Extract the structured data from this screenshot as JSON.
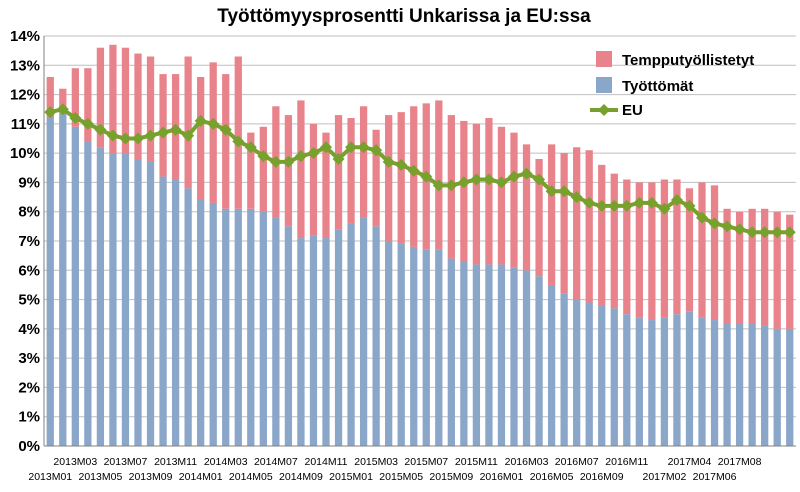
{
  "chart_data": {
    "type": "bar",
    "title": "Työttömyysprosentti Unkarissa ja EU:ssa",
    "y_ticks": [
      "0%",
      "1%",
      "2%",
      "3%",
      "4%",
      "5%",
      "6%",
      "7%",
      "8%",
      "9%",
      "10%",
      "11%",
      "12%",
      "13%",
      "14%"
    ],
    "ylim": [
      0,
      14
    ],
    "grid": true,
    "legend_position": "top-right",
    "x_tick_labels_row1": [
      "2013M03",
      "2013M07",
      "2013M11",
      "2014M03",
      "2014M07",
      "2014M11",
      "2015M03",
      "2015M07",
      "2015M11",
      "2016M03",
      "2016M07",
      "2016M11",
      "2017M04",
      "2017M08"
    ],
    "x_tick_labels_row2": [
      "2013M01",
      "2013M05",
      "2013M09",
      "2014M01",
      "2014M05",
      "2014M09",
      "2015M01",
      "2015M05",
      "2015M09",
      "2016M01",
      "2016M05",
      "2016M09",
      "2017M02",
      "2017M06"
    ],
    "series": [
      {
        "name": "Tempputyöllistetyt",
        "kind": "stacked-bar",
        "color": "#e8838b",
        "values": [
          1.4,
          0.8,
          2.0,
          2.5,
          3.4,
          3.7,
          3.6,
          3.6,
          3.6,
          3.5,
          3.6,
          4.5,
          4.2,
          4.8,
          4.6,
          5.2,
          2.6,
          2.9,
          3.8,
          3.8,
          4.7,
          3.8,
          3.6,
          3.9,
          3.6,
          3.8,
          3.3,
          4.3,
          4.5,
          4.8,
          5.0,
          5.1,
          4.9,
          4.8,
          4.8,
          5.0,
          4.7,
          4.6,
          4.3,
          4.0,
          4.8,
          4.8,
          5.2,
          5.2,
          4.8,
          4.6,
          4.6,
          4.6,
          4.7,
          4.7,
          4.6,
          4.2,
          4.6,
          4.6,
          3.9,
          3.8,
          3.9,
          4.0,
          4.0,
          3.9
        ]
      },
      {
        "name": "Työttömät",
        "kind": "stacked-bar",
        "color": "#8aa6c8",
        "values": [
          11.2,
          11.4,
          10.9,
          10.4,
          10.2,
          10.0,
          10.0,
          9.8,
          9.7,
          9.2,
          9.1,
          8.8,
          8.4,
          8.3,
          8.1,
          8.1,
          8.1,
          8.0,
          7.8,
          7.5,
          7.1,
          7.2,
          7.1,
          7.4,
          7.6,
          7.8,
          7.5,
          7.0,
          6.9,
          6.8,
          6.7,
          6.7,
          6.4,
          6.3,
          6.2,
          6.2,
          6.2,
          6.1,
          6.0,
          5.8,
          5.5,
          5.2,
          5.0,
          4.9,
          4.8,
          4.7,
          4.5,
          4.4,
          4.3,
          4.4,
          4.5,
          4.6,
          4.4,
          4.3,
          4.2,
          4.2,
          4.2,
          4.1,
          4.0,
          4.0
        ]
      },
      {
        "name": "EU",
        "kind": "line",
        "color": "#77a02c",
        "values": [
          11.4,
          11.5,
          11.2,
          11.0,
          10.8,
          10.6,
          10.5,
          10.5,
          10.6,
          10.7,
          10.8,
          10.6,
          11.1,
          11.0,
          10.8,
          10.4,
          10.2,
          9.9,
          9.7,
          9.7,
          9.9,
          10.0,
          10.2,
          9.8,
          10.2,
          10.2,
          10.1,
          9.7,
          9.6,
          9.4,
          9.2,
          8.9,
          8.9,
          9.0,
          9.1,
          9.1,
          9.0,
          9.2,
          9.3,
          9.1,
          8.7,
          8.7,
          8.5,
          8.3,
          8.2,
          8.2,
          8.2,
          8.3,
          8.3,
          8.1,
          8.4,
          8.2,
          7.8,
          7.6,
          7.5,
          7.4,
          7.3,
          7.3,
          7.3,
          7.3
        ]
      }
    ]
  }
}
